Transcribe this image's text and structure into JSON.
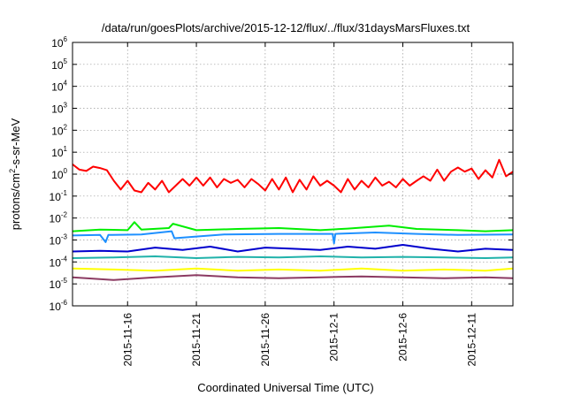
{
  "chart_data": {
    "type": "line",
    "title": "/data/run/goesPlots/archive/2015-12-12/flux/../flux/31daysMarsFluxes.txt",
    "xlabel": "Coordinated Universal Time (UTC)",
    "ylabel": {
      "base": "protons/cm",
      "sup": "2",
      "rest": "-s-sr-MeV"
    },
    "x_axis": {
      "type": "date",
      "range": [
        "2015-11-12",
        "2015-12-14"
      ],
      "ticks": [
        "2015-11-16",
        "2015-11-21",
        "2015-11-26",
        "2015-12-1",
        "2015-12-6",
        "2015-12-11"
      ]
    },
    "y_axis": {
      "scale": "log",
      "range": [
        1e-06,
        1000000.0
      ],
      "ticks": [
        {
          "base": "10",
          "exp": "-6"
        },
        {
          "base": "10",
          "exp": "-5"
        },
        {
          "base": "10",
          "exp": "-4"
        },
        {
          "base": "10",
          "exp": "-3"
        },
        {
          "base": "10",
          "exp": "-2"
        },
        {
          "base": "10",
          "exp": "-1"
        },
        {
          "base": "10",
          "exp": "0"
        },
        {
          "base": "10",
          "exp": "1"
        },
        {
          "base": "10",
          "exp": "2"
        },
        {
          "base": "10",
          "exp": "3"
        },
        {
          "base": "10",
          "exp": "4"
        },
        {
          "base": "10",
          "exp": "5"
        },
        {
          "base": "10",
          "exp": "6"
        }
      ]
    },
    "grid": true,
    "series": [
      {
        "color": "#ff0000",
        "x": [
          "2015-11-12",
          "2015-11-12.5",
          "2015-11-13",
          "2015-11-13.5",
          "2015-11-14",
          "2015-11-14.5",
          "2015-11-15",
          "2015-11-15.5",
          "2015-11-16",
          "2015-11-16.5",
          "2015-11-17",
          "2015-11-17.5",
          "2015-11-18",
          "2015-11-18.5",
          "2015-11-19",
          "2015-11-19.5",
          "2015-11-20",
          "2015-11-20.5",
          "2015-11-21",
          "2015-11-21.5",
          "2015-11-22",
          "2015-11-22.5",
          "2015-11-23",
          "2015-11-23.5",
          "2015-11-24",
          "2015-11-24.5",
          "2015-11-25",
          "2015-11-25.5",
          "2015-11-26",
          "2015-11-26.5",
          "2015-11-27",
          "2015-11-27.5",
          "2015-11-28",
          "2015-11-28.5",
          "2015-11-29",
          "2015-11-29.5",
          "2015-11-30",
          "2015-11-30.5",
          "2015-12-01",
          "2015-12-01.5",
          "2015-12-02",
          "2015-12-02.5",
          "2015-12-03",
          "2015-12-03.5",
          "2015-12-04",
          "2015-12-04.5",
          "2015-12-05",
          "2015-12-05.5",
          "2015-12-06",
          "2015-12-06.5",
          "2015-12-07",
          "2015-12-07.5",
          "2015-12-08",
          "2015-12-08.5",
          "2015-12-09",
          "2015-12-09.5",
          "2015-12-10",
          "2015-12-10.5",
          "2015-12-11",
          "2015-12-11.5",
          "2015-12-12",
          "2015-12-12.5",
          "2015-12-13",
          "2015-12-13.5",
          "2015-12-14"
        ],
        "values": [
          2.8,
          1.6,
          1.4,
          2.2,
          1.9,
          1.5,
          0.5,
          0.2,
          0.5,
          0.18,
          0.15,
          0.4,
          0.2,
          0.5,
          0.15,
          0.3,
          0.6,
          0.3,
          0.7,
          0.3,
          0.7,
          0.25,
          0.6,
          0.4,
          0.55,
          0.25,
          0.6,
          0.35,
          0.18,
          0.6,
          0.2,
          0.7,
          0.15,
          0.55,
          0.2,
          0.8,
          0.3,
          0.5,
          0.3,
          0.15,
          0.6,
          0.2,
          0.5,
          0.25,
          0.7,
          0.3,
          0.45,
          0.25,
          0.6,
          0.3,
          0.5,
          0.8,
          0.5,
          1.6,
          0.5,
          1.3,
          2.0,
          1.3,
          1.8,
          0.6,
          1.5,
          0.7,
          4.5,
          0.8,
          1.3
        ]
      },
      {
        "color": "#00ee00",
        "x": [
          "2015-11-12",
          "2015-11-14",
          "2015-11-16",
          "2015-11-16.5",
          "2015-11-17",
          "2015-11-19",
          "2015-11-19.3",
          "2015-11-21",
          "2015-11-24",
          "2015-11-27",
          "2015-11-30",
          "2015-12-02",
          "2015-12-05",
          "2015-12-07",
          "2015-12-10",
          "2015-12-12",
          "2015-12-14"
        ],
        "values": [
          0.0025,
          0.003,
          0.0028,
          0.0065,
          0.003,
          0.0035,
          0.0055,
          0.0028,
          0.0032,
          0.0035,
          0.0028,
          0.0033,
          0.0045,
          0.0032,
          0.0028,
          0.0025,
          0.0028
        ]
      },
      {
        "color": "#1e90ff",
        "x": [
          "2015-11-12",
          "2015-11-14",
          "2015-11-14.4",
          "2015-11-14.6",
          "2015-11-17",
          "2015-11-19.2",
          "2015-11-19.4",
          "2015-11-23",
          "2015-11-27",
          "2015-11-30.9",
          "2015-12-01",
          "2015-12-01.1",
          "2015-12-04",
          "2015-12-07",
          "2015-12-10",
          "2015-12-14"
        ],
        "values": [
          0.0016,
          0.0017,
          0.0008,
          0.0017,
          0.0018,
          0.0025,
          0.0012,
          0.0018,
          0.0019,
          0.0019,
          0.0007,
          0.0019,
          0.0022,
          0.0019,
          0.0017,
          0.0018
        ]
      },
      {
        "color": "#0000cd",
        "x": [
          "2015-11-12",
          "2015-11-14",
          "2015-11-16",
          "2015-11-18",
          "2015-11-20",
          "2015-11-22",
          "2015-11-24",
          "2015-11-26",
          "2015-11-28",
          "2015-11-30",
          "2015-12-02",
          "2015-12-04",
          "2015-12-06",
          "2015-12-08",
          "2015-12-10",
          "2015-12-12",
          "2015-12-14"
        ],
        "values": [
          0.0003,
          0.00032,
          0.0003,
          0.00045,
          0.00035,
          0.0005,
          0.0003,
          0.00045,
          0.0004,
          0.00035,
          0.0005,
          0.0004,
          0.0006,
          0.0004,
          0.0003,
          0.0004,
          0.00035
        ]
      },
      {
        "color": "#20b2aa",
        "x": [
          "2015-11-12",
          "2015-11-15",
          "2015-11-18",
          "2015-11-21",
          "2015-11-24",
          "2015-11-27",
          "2015-11-30",
          "2015-12-03",
          "2015-12-06",
          "2015-12-09",
          "2015-12-12",
          "2015-12-14"
        ],
        "values": [
          0.00015,
          0.00016,
          0.00018,
          0.00015,
          0.00017,
          0.00016,
          0.00018,
          0.00016,
          0.00017,
          0.00016,
          0.00015,
          0.00016
        ]
      },
      {
        "color": "#ffff00",
        "x": [
          "2015-11-12",
          "2015-11-15",
          "2015-11-18",
          "2015-11-21",
          "2015-11-24",
          "2015-11-27",
          "2015-11-30",
          "2015-12-03",
          "2015-12-06",
          "2015-12-09",
          "2015-12-12",
          "2015-12-14"
        ],
        "values": [
          5e-05,
          4.5e-05,
          4e-05,
          5e-05,
          4e-05,
          4.5e-05,
          4e-05,
          5e-05,
          4e-05,
          4.5e-05,
          4e-05,
          5e-05
        ]
      },
      {
        "color": "#8b3a62",
        "x": [
          "2015-11-12",
          "2015-11-15",
          "2015-11-18",
          "2015-11-21",
          "2015-11-24",
          "2015-11-27",
          "2015-11-30",
          "2015-12-03",
          "2015-12-06",
          "2015-12-09",
          "2015-12-12",
          "2015-12-14"
        ],
        "values": [
          2e-05,
          1.5e-05,
          2e-05,
          2.5e-05,
          2e-05,
          1.8e-05,
          2e-05,
          2.2e-05,
          2e-05,
          1.8e-05,
          2e-05,
          1.8e-05
        ]
      }
    ]
  }
}
